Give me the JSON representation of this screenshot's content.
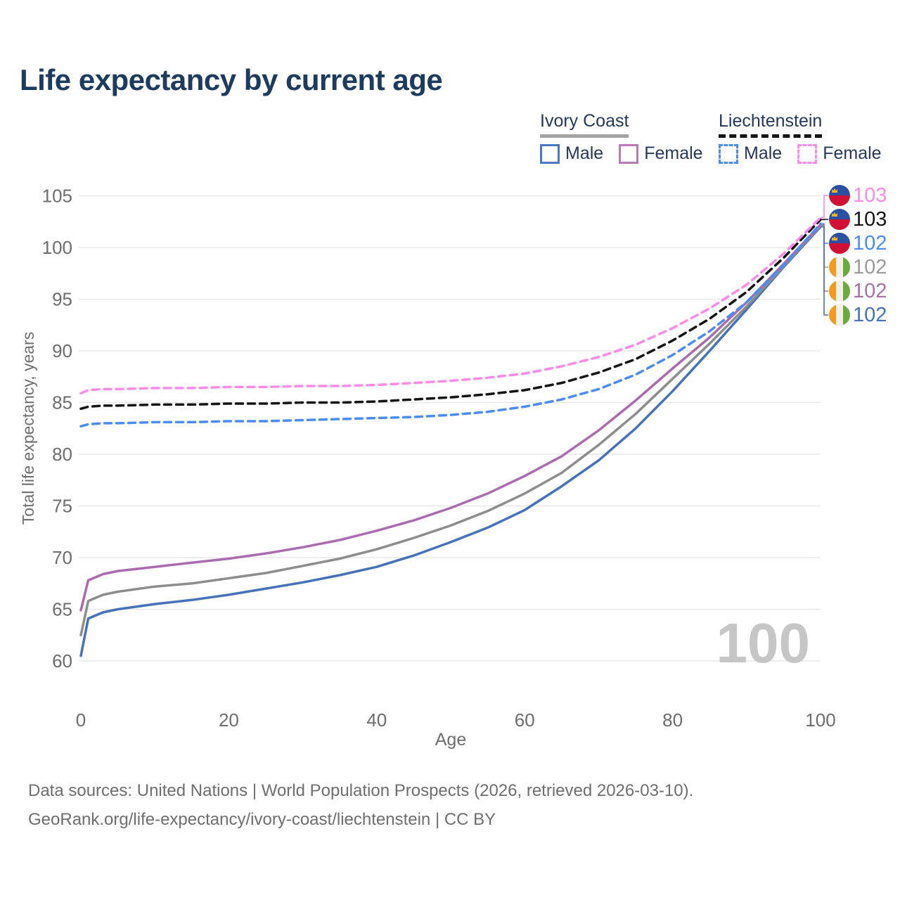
{
  "title": "Life expectancy by current age",
  "legend": {
    "groups": [
      {
        "title": "Ivory Coast",
        "style": "solid",
        "items": [
          {
            "label": "Male",
            "color": "#4c79bd"
          },
          {
            "label": "Female",
            "color": "#b87ab8"
          }
        ]
      },
      {
        "title": "Liechtenstein",
        "style": "dashed",
        "items": [
          {
            "label": "Male",
            "color": "#4b8bf5"
          },
          {
            "label": "Female",
            "color": "#fb8ae8"
          }
        ]
      }
    ]
  },
  "chart_data": {
    "type": "line",
    "title": "Life expectancy by current age",
    "xlabel": "Age",
    "ylabel": "Total life expectancy, years",
    "xlim": [
      0,
      100
    ],
    "ylim": [
      60,
      105
    ],
    "xticks": [
      0,
      20,
      40,
      60,
      80,
      100
    ],
    "yticks": [
      105,
      100,
      95,
      90,
      85,
      80,
      75,
      70,
      65,
      60
    ],
    "grid": "horizontal",
    "legend_position": "top-right",
    "watermark": "100",
    "x": [
      0,
      1,
      3,
      5,
      10,
      15,
      20,
      25,
      30,
      35,
      40,
      45,
      50,
      55,
      60,
      65,
      70,
      75,
      80,
      85,
      90,
      95,
      100
    ],
    "series": [
      {
        "key": "ic_male",
        "name": "Ivory Coast Male",
        "color": "#4672ba",
        "dash": false,
        "values": [
          60.5,
          64.1,
          64.7,
          65.0,
          65.5,
          65.9,
          66.4,
          67.0,
          67.6,
          68.3,
          69.1,
          70.2,
          71.5,
          72.9,
          74.6,
          76.9,
          79.4,
          82.5,
          86.1,
          90.0,
          94.0,
          98.1,
          102.0
        ]
      },
      {
        "key": "ic_both",
        "name": "Ivory Coast Both sexes",
        "color": "#8d8d8d",
        "dash": false,
        "values": [
          62.5,
          65.8,
          66.4,
          66.7,
          67.2,
          67.5,
          68.0,
          68.5,
          69.2,
          69.9,
          70.8,
          71.9,
          73.1,
          74.5,
          76.2,
          78.2,
          80.9,
          83.9,
          87.3,
          90.7,
          94.3,
          98.2,
          102.1
        ]
      },
      {
        "key": "ic_female",
        "name": "Ivory Coast Female",
        "color": "#ab6caf",
        "dash": false,
        "values": [
          64.9,
          67.8,
          68.4,
          68.7,
          69.1,
          69.5,
          69.9,
          70.4,
          71.0,
          71.7,
          72.6,
          73.6,
          74.8,
          76.2,
          77.9,
          79.8,
          82.3,
          85.2,
          88.3,
          91.3,
          94.7,
          98.4,
          102.2
        ]
      },
      {
        "key": "lie_male",
        "name": "Liechtenstein Male",
        "color": "#4b8bf5",
        "dash": true,
        "values": [
          82.7,
          82.9,
          83.0,
          83.0,
          83.1,
          83.1,
          83.2,
          83.2,
          83.3,
          83.4,
          83.5,
          83.6,
          83.8,
          84.1,
          84.6,
          85.3,
          86.3,
          87.7,
          89.6,
          91.9,
          94.7,
          98.3,
          102.3
        ]
      },
      {
        "key": "lie_both",
        "name": "Liechtenstein Both sexes",
        "color": "#141414",
        "dash": true,
        "values": [
          84.4,
          84.6,
          84.7,
          84.7,
          84.8,
          84.8,
          84.9,
          84.9,
          85.0,
          85.0,
          85.1,
          85.3,
          85.5,
          85.8,
          86.2,
          86.9,
          87.9,
          89.2,
          91.0,
          93.1,
          95.7,
          99.0,
          102.7
        ]
      },
      {
        "key": "lie_female",
        "name": "Liechtenstein Female",
        "color": "#fb8ae8",
        "dash": true,
        "values": [
          85.9,
          86.2,
          86.3,
          86.3,
          86.4,
          86.4,
          86.5,
          86.5,
          86.6,
          86.6,
          86.7,
          86.9,
          87.1,
          87.4,
          87.8,
          88.5,
          89.4,
          90.6,
          92.2,
          94.1,
          96.4,
          99.4,
          102.9
        ]
      }
    ],
    "end_labels": [
      {
        "value": "103",
        "color": "#fb8ae8",
        "flag": "liechtenstein",
        "series": "lie_female"
      },
      {
        "value": "103",
        "color": "#141414",
        "flag": "liechtenstein",
        "series": "lie_both"
      },
      {
        "value": "102",
        "color": "#4b8bf5",
        "flag": "liechtenstein",
        "series": "lie_male"
      },
      {
        "value": "102",
        "color": "#9b9b9b",
        "flag": "ivory_coast",
        "series": "ic_both"
      },
      {
        "value": "102",
        "color": "#a872a8",
        "flag": "ivory_coast",
        "series": "ic_female"
      },
      {
        "value": "102",
        "color": "#4672ba",
        "flag": "ivory_coast",
        "series": "ic_male"
      }
    ]
  },
  "flags": {
    "liechtenstein": {
      "top": "#2b50a1",
      "bottom": "#d01034",
      "crown": "#edb41f"
    },
    "ivory_coast": {
      "left": "#f49b1b",
      "mid": "#f1efe9",
      "right": "#6aaa3f"
    }
  },
  "footer": {
    "line1": "Data sources: United Nations | World Population Prospects (2026, retrieved 2026-03-10).",
    "line2": "GeoRank.org/life-expectancy/ivory-coast/liechtenstein | CC BY"
  }
}
